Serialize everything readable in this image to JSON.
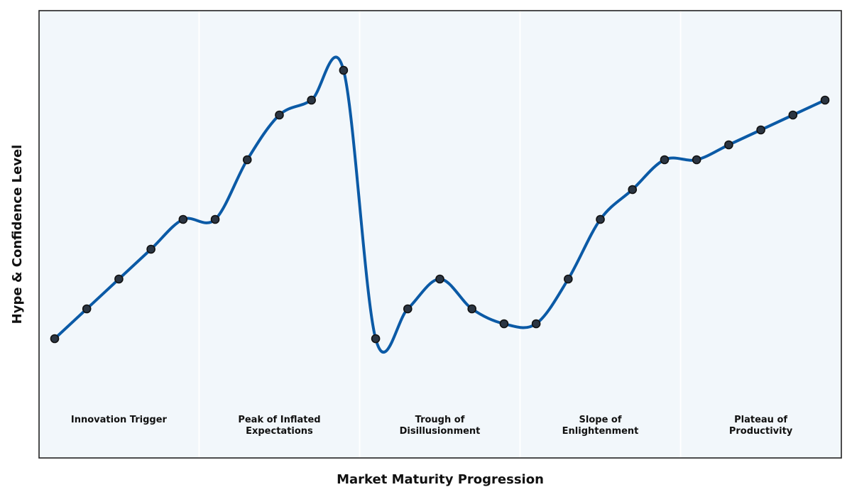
{
  "chart_data": {
    "type": "line",
    "xlabel": "Market Maturity Progression",
    "ylabel": "Hype & Confidence Level",
    "xlim": [
      0,
      25
    ],
    "ylim": [
      0,
      150
    ],
    "grid": false,
    "legend": "none",
    "colors": {
      "line": "#0b5aa6",
      "marker_fill": "#2b3542",
      "marker_edge": "#111111",
      "plot_bg": "#f2f7fb",
      "separator": "#ffffff",
      "frame": "#222222"
    },
    "phases": [
      {
        "lines": [
          "Innovation Trigger"
        ],
        "start": 0,
        "end": 5,
        "center": 2
      },
      {
        "lines": [
          "Peak of Inflated",
          "Expectations"
        ],
        "start": 5,
        "end": 10,
        "center": 7
      },
      {
        "lines": [
          "Trough of",
          "Disillusionment"
        ],
        "start": 10,
        "end": 15,
        "center": 12
      },
      {
        "lines": [
          "Slope of",
          "Enlightenment"
        ],
        "start": 15,
        "end": 20,
        "center": 17
      },
      {
        "lines": [
          "Plateau of",
          "Productivity"
        ],
        "start": 20,
        "end": 25,
        "center": 22
      }
    ],
    "series": [
      {
        "x": [
          0,
          1,
          2,
          3,
          4,
          5,
          6,
          7,
          8,
          9,
          10,
          11,
          12,
          13,
          14,
          15,
          16,
          17,
          18,
          19,
          20,
          21,
          22,
          23,
          24
        ],
        "y": [
          40,
          50,
          60,
          70,
          80,
          80,
          100,
          115,
          120,
          130,
          40,
          50,
          60,
          50,
          45,
          45,
          60,
          80,
          90,
          100,
          100,
          105,
          110,
          115,
          120
        ]
      }
    ]
  }
}
